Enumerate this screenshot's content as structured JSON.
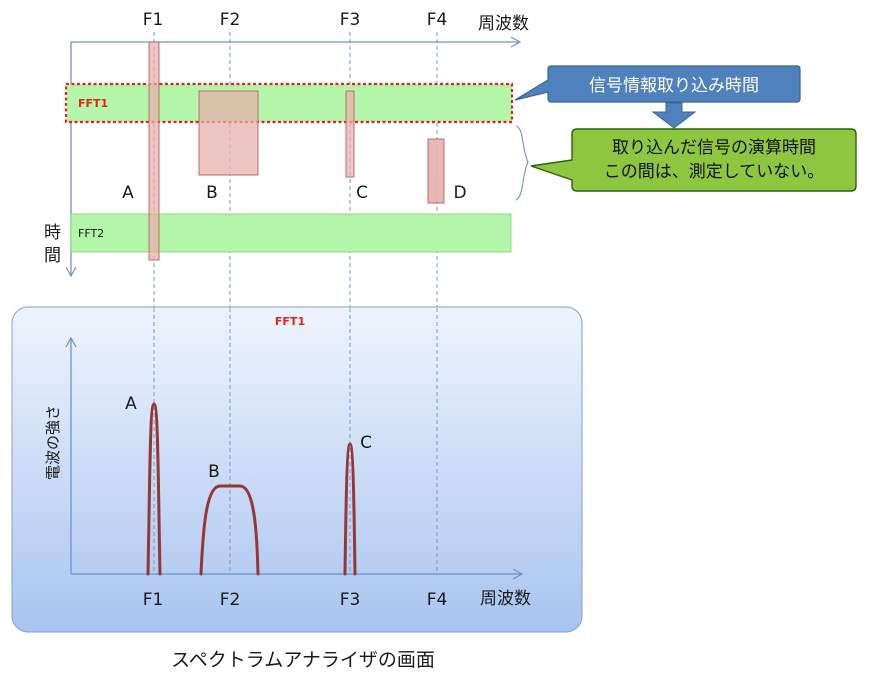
{
  "frequencies": [
    "F1",
    "F2",
    "F3",
    "F4"
  ],
  "axis": {
    "top_x_label": "周波数",
    "time_label": "時\n間",
    "bottom_x_label": "周波数",
    "y_label": "電波の強さ"
  },
  "fft_bars": {
    "fft1": "FFT1",
    "fft2": "FFT2"
  },
  "signals": [
    "A",
    "B",
    "C",
    "D"
  ],
  "callouts": {
    "acquisition": "信号情報取り込み時間",
    "computation_line1": "取り込んだ信号の演算時間",
    "computation_line2": "この間は、測定していない。"
  },
  "analyzer_panel": {
    "title": "FFT1",
    "peaks": [
      "A",
      "B",
      "C"
    ]
  },
  "caption": "スペクトラムアナライザの画面",
  "colors": {
    "axis": "#6f93c8",
    "fft_bar": "#b3f5a9",
    "signal_fill": "#e5b0ae",
    "signal_stroke": "#c46a66",
    "dashed_red": "#e3231b",
    "callout_blue": "#4f81bd",
    "callout_green": "#8ec63f",
    "peak_curve": "#953734",
    "panel_top": "#e8f0fb",
    "panel_bottom": "#a5c1ef"
  }
}
